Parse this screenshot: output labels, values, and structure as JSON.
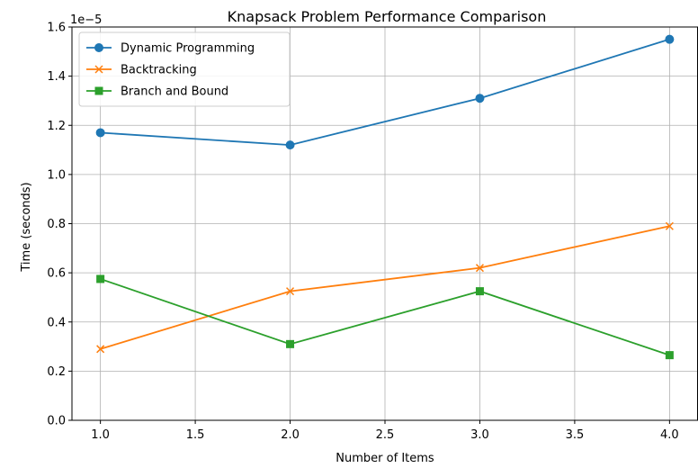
{
  "chart_data": {
    "type": "line",
    "title": "Knapsack Problem Performance Comparison",
    "xlabel": "Number of Items",
    "ylabel": "Time (seconds)",
    "y_offset_label": "1e−5",
    "x": [
      1.0,
      2.0,
      3.0,
      4.0
    ],
    "xlim": [
      0.85,
      4.15
    ],
    "ylim": [
      0.0,
      1.6
    ],
    "x_ticks": [
      1.0,
      1.5,
      2.0,
      2.5,
      3.0,
      3.5,
      4.0
    ],
    "x_tick_labels": [
      "1.0",
      "1.5",
      "2.0",
      "2.5",
      "3.0",
      "3.5",
      "4.0"
    ],
    "y_ticks": [
      0.0,
      0.2,
      0.4,
      0.6,
      0.8,
      1.0,
      1.2,
      1.4,
      1.6
    ],
    "y_tick_labels": [
      "0.0",
      "0.2",
      "0.4",
      "0.6",
      "0.8",
      "1.0",
      "1.2",
      "1.4",
      "1.6"
    ],
    "grid": true,
    "legend_position": "top-left",
    "series": [
      {
        "name": "Dynamic Programming",
        "values": [
          1.17,
          1.12,
          1.31,
          1.55
        ],
        "color": "#1f77b4",
        "marker": "circle"
      },
      {
        "name": "Backtracking",
        "values": [
          0.29,
          0.525,
          0.62,
          0.79
        ],
        "color": "#ff7f0e",
        "marker": "x"
      },
      {
        "name": "Branch and Bound",
        "values": [
          0.575,
          0.31,
          0.525,
          0.265
        ],
        "color": "#2ca02c",
        "marker": "square"
      }
    ]
  }
}
